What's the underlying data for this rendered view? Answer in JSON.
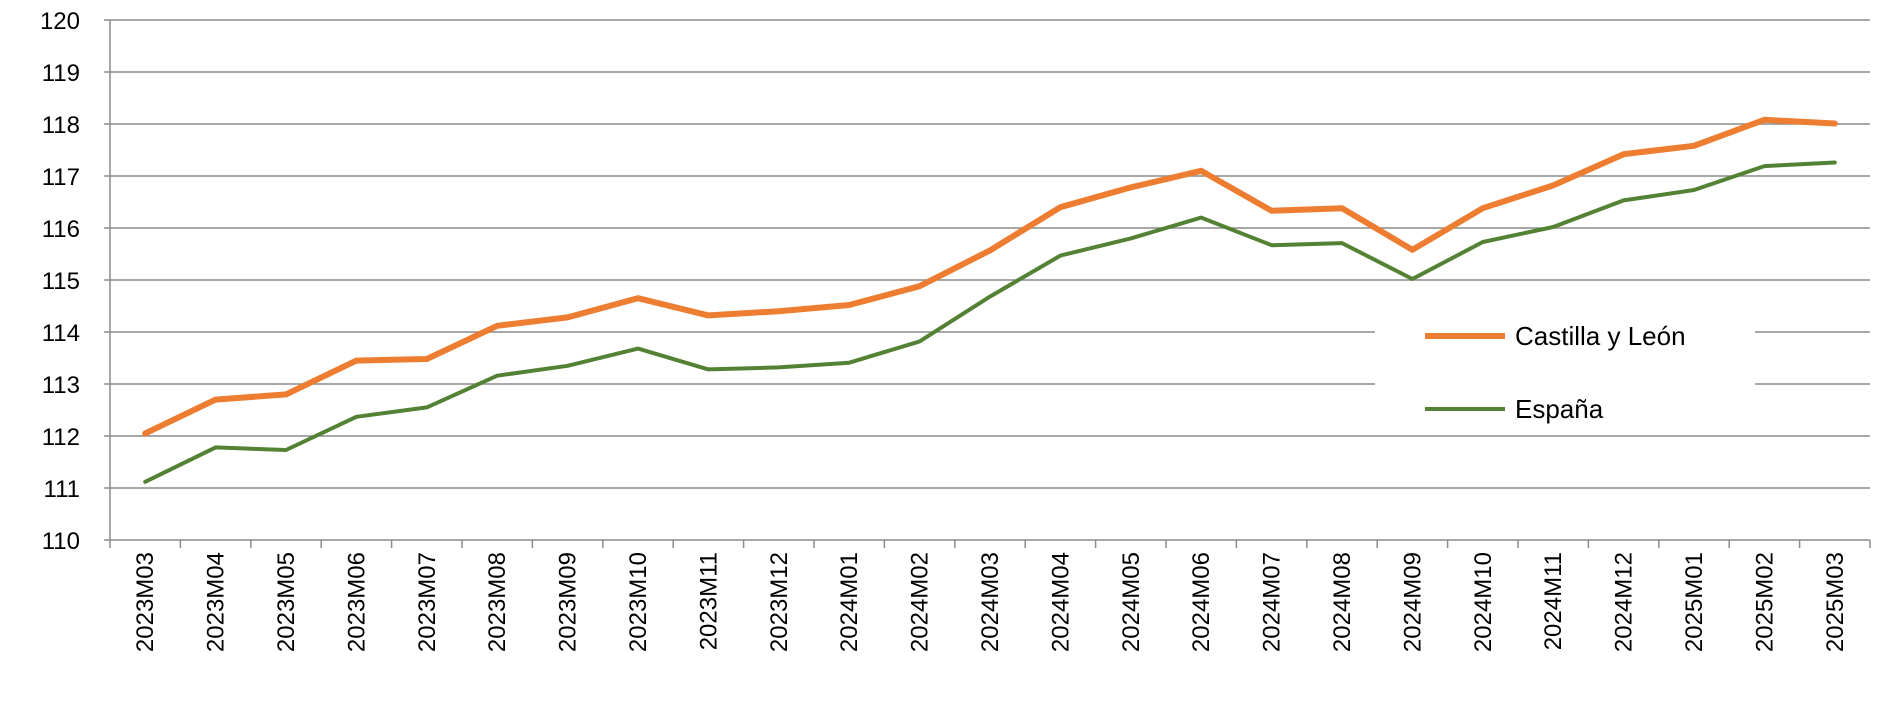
{
  "chart_data": {
    "type": "line",
    "title": "",
    "xlabel": "",
    "ylabel": "",
    "ylim": [
      110,
      120
    ],
    "yticks": [
      110,
      111,
      112,
      113,
      114,
      115,
      116,
      117,
      118,
      119,
      120
    ],
    "grid": "horizontal",
    "legend_position": "right",
    "categories": [
      "2023M03",
      "2023M04",
      "2023M05",
      "2023M06",
      "2023M07",
      "2023M08",
      "2023M09",
      "2023M10",
      "2023M11",
      "2023M12",
      "2024M01",
      "2024M02",
      "2024M03",
      "2024M04",
      "2024M05",
      "2024M06",
      "2024M07",
      "2024M08",
      "2024M09",
      "2024M10",
      "2024M11",
      "2024M12",
      "2025M01",
      "2025M02",
      "2025M03"
    ],
    "series": [
      {
        "name": "Castilla y León",
        "color": "#ED7D31",
        "values": [
          112.05,
          112.7,
          112.8,
          113.45,
          113.48,
          114.12,
          114.28,
          114.65,
          114.32,
          114.4,
          114.52,
          114.88,
          115.57,
          116.4,
          116.78,
          117.1,
          116.33,
          116.38,
          115.58,
          116.38,
          116.82,
          117.42,
          117.58,
          118.08,
          118.01
        ]
      },
      {
        "name": "España",
        "color": "#548235",
        "values": [
          111.12,
          111.78,
          111.73,
          112.37,
          112.55,
          113.16,
          113.35,
          113.68,
          113.28,
          113.32,
          113.41,
          113.82,
          114.68,
          115.47,
          115.8,
          116.2,
          115.67,
          115.71,
          115.02,
          115.73,
          116.02,
          116.53,
          116.73,
          117.19,
          117.26
        ]
      }
    ]
  }
}
